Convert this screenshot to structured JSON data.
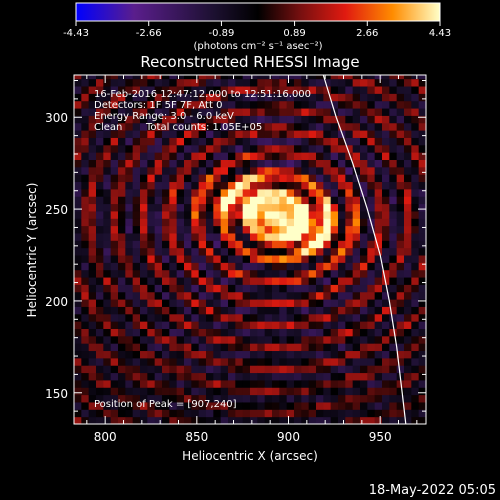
{
  "chart_data": {
    "type": "heatmap",
    "title": "Reconstructed RHESSI Image",
    "xlabel": "Heliocentric X (arcsec)",
    "ylabel": "Heliocentric Y (arcsec)",
    "xlim": [
      783,
      975
    ],
    "ylim": [
      133,
      323
    ],
    "x_ticks": [
      800,
      850,
      900,
      950
    ],
    "y_ticks": [
      150,
      200,
      250,
      300
    ],
    "colorbar": {
      "range": [
        -4.43,
        4.43
      ],
      "tick_values": [
        -4.43,
        -2.66,
        -0.89,
        0.89,
        2.66,
        4.43
      ],
      "tick_labels": [
        "-4.43",
        "-2.66",
        "-0.89",
        "0.89",
        "2.66",
        "4.43"
      ],
      "unit_label": "(photons cm⁻² s⁻¹ asec⁻²)",
      "colors": [
        "#0000ff",
        "#5a1e8c",
        "#1c1030",
        "#000000",
        "#7a1010",
        "#e01a10",
        "#ff8c00",
        "#ffffc8"
      ]
    },
    "annotations": {
      "time": "16-Feb-2016 12:47:12.000 to 12:51:16.000",
      "detectors": "Detectors: 1F 5F 7F, Att 0",
      "energy": "Energy Range: 3.0 - 6.0 keV",
      "clean": "Clean",
      "counts": "Total counts: 1.05E+05",
      "peak": "Position of Peak = [907,240]"
    },
    "peak": [
      907,
      240
    ],
    "limb_curve": [
      [
        919,
        323
      ],
      [
        926,
        300
      ],
      [
        935,
        275
      ],
      [
        943,
        250
      ],
      [
        950,
        225
      ],
      [
        955,
        200
      ],
      [
        959,
        175
      ],
      [
        962,
        150
      ],
      [
        964,
        133
      ]
    ],
    "sources": [
      {
        "x": 879,
        "y": 255,
        "amp": 3.8,
        "sx": 18,
        "sy": 9
      },
      {
        "x": 907,
        "y": 240,
        "amp": 4.43,
        "sx": 17,
        "sy": 11
      }
    ]
  },
  "footer": {
    "timestamp": "18-May-2022 05:05"
  }
}
